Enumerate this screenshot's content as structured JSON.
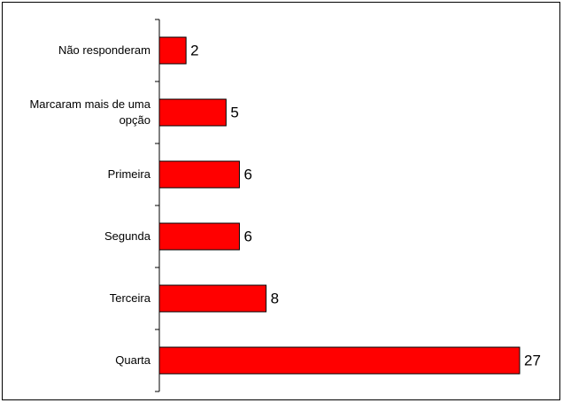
{
  "chart_data": {
    "type": "bar",
    "orientation": "horizontal",
    "categories": [
      "Não responderam",
      "Marcaram mais de uma opção",
      "Primeira",
      "Segunda",
      "Terceira",
      "Quarta"
    ],
    "values": [
      2,
      5,
      6,
      6,
      8,
      27
    ],
    "color": "#ff0000"
  }
}
